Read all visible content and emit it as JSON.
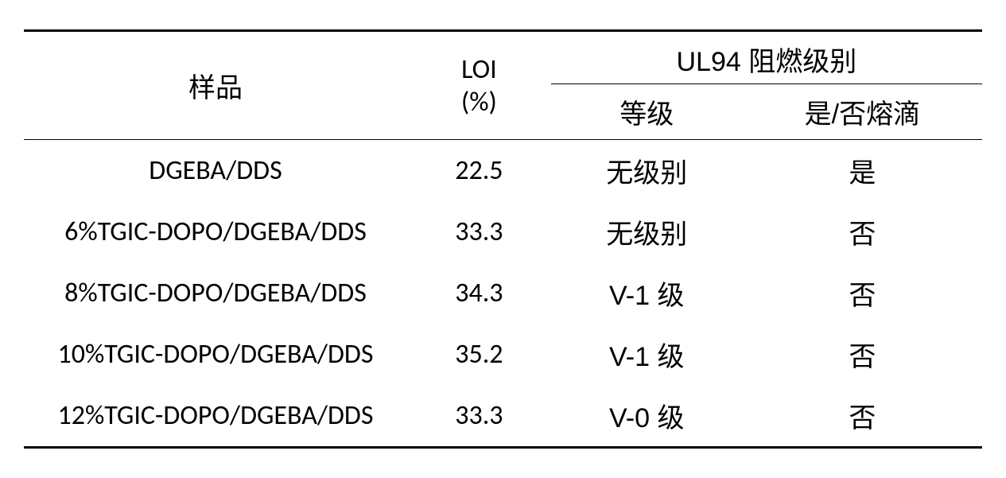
{
  "table": {
    "headers": {
      "sample": "样品",
      "loi": "LOI",
      "loi_unit": "(%)",
      "ul94": "UL94 阻燃级别",
      "grade": "等级",
      "drip": "是/否熔滴"
    },
    "rows": [
      {
        "sample": "DGEBA/DDS",
        "loi": "22.5",
        "grade": "无级别",
        "drip": "是"
      },
      {
        "sample": "6%TGIC-DOPO/DGEBA/DDS",
        "loi": "33.3",
        "grade": "无级别",
        "drip": "否"
      },
      {
        "sample": "8%TGIC-DOPO/DGEBA/DDS",
        "loi": "34.3",
        "grade": "V-1 级",
        "drip": "否"
      },
      {
        "sample": "10%TGIC-DOPO/DGEBA/DDS",
        "loi": "35.2",
        "grade": "V-1 级",
        "drip": "否"
      },
      {
        "sample": "12%TGIC-DOPO/DGEBA/DDS",
        "loi": "33.3",
        "grade": "V-0 级",
        "drip": "否"
      }
    ],
    "colors": {
      "background": "#ffffff",
      "text": "#000000",
      "border": "#000000"
    },
    "font_sizes": {
      "cell": 34
    }
  }
}
